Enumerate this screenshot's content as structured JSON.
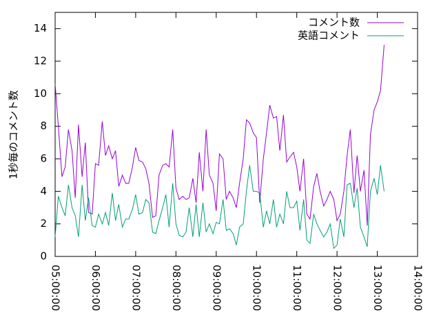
{
  "chart_data": {
    "type": "line",
    "ylabel": "1秒毎のコメント数",
    "xlim": [
      5,
      14
    ],
    "ylim": [
      0,
      15
    ],
    "xticks": [
      {
        "value": 5,
        "label": "05:00:00"
      },
      {
        "value": 6,
        "label": "06:00:00"
      },
      {
        "value": 7,
        "label": "07:00:00"
      },
      {
        "value": 8,
        "label": "08:00:00"
      },
      {
        "value": 9,
        "label": "09:00:00"
      },
      {
        "value": 10,
        "label": "10:00:00"
      },
      {
        "value": 11,
        "label": "11:00:00"
      },
      {
        "value": 12,
        "label": "12:00:00"
      },
      {
        "value": 13,
        "label": "13:00:00"
      },
      {
        "value": 14,
        "label": "14:00:00"
      }
    ],
    "yticks": [
      0,
      2,
      4,
      6,
      8,
      10,
      12,
      14
    ],
    "legend": "upper right",
    "x": [
      5,
      5.08,
      5.17,
      5.25,
      5.33,
      5.42,
      5.5,
      5.58,
      5.67,
      5.75,
      5.83,
      5.92,
      6,
      6.08,
      6.17,
      6.25,
      6.33,
      6.42,
      6.5,
      6.58,
      6.67,
      6.75,
      6.83,
      6.92,
      7,
      7.08,
      7.17,
      7.25,
      7.33,
      7.42,
      7.5,
      7.58,
      7.67,
      7.75,
      7.83,
      7.92,
      8,
      8.08,
      8.17,
      8.25,
      8.33,
      8.42,
      8.5,
      8.58,
      8.67,
      8.75,
      8.83,
      8.92,
      9,
      9.08,
      9.17,
      9.25,
      9.33,
      9.42,
      9.5,
      9.58,
      9.67,
      9.75,
      9.83,
      9.92,
      10,
      10.08,
      10.17,
      10.25,
      10.33,
      10.42,
      10.5,
      10.58,
      10.67,
      10.75,
      10.83,
      10.92,
      11,
      11.08,
      11.17,
      11.25,
      11.33,
      11.42,
      11.5,
      11.58,
      11.67,
      11.75,
      11.83,
      11.92,
      12,
      12.08,
      12.17,
      12.25,
      12.33,
      12.42,
      12.5,
      12.58,
      12.67,
      12.75,
      12.83,
      12.92,
      13,
      13.08,
      13.17
    ],
    "series": [
      {
        "name": "コメント数",
        "color": "#9400d3",
        "values": [
          10.6,
          8,
          4.9,
          5.5,
          7.8,
          6.5,
          3.6,
          8.1,
          4.9,
          7.0,
          2.7,
          2.6,
          5.7,
          5.6,
          8.3,
          6.2,
          6.8,
          6.0,
          6.5,
          4.3,
          5.0,
          4.5,
          4.5,
          5.5,
          6.7,
          5.9,
          5.8,
          5.4,
          4.5,
          2.4,
          2.5,
          5.0,
          5.6,
          5.7,
          5.5,
          7.8,
          4.2,
          3.5,
          3.7,
          3.5,
          3.6,
          4.8,
          3.3,
          6.4,
          4.0,
          7.8,
          5.0,
          4.5,
          2.8,
          6.3,
          6.0,
          3.5,
          4.0,
          3.6,
          3.0,
          4.5,
          6.0,
          8.4,
          8.2,
          7.6,
          7.3,
          3.3,
          6.0,
          7.6,
          9.3,
          8.5,
          8.6,
          6.5,
          8.7,
          5.8,
          6.1,
          6.4,
          5.5,
          4.0,
          6.0,
          2.6,
          2.3,
          4.3,
          5.1,
          4.0,
          3.1,
          3.5,
          4.0,
          3.5,
          2.2,
          2.6,
          4.0,
          6.2,
          7.8,
          3.9,
          6.2,
          4.0,
          5.3,
          1.9,
          7.5,
          9.0,
          9.5,
          10.2,
          13.0
        ]
      },
      {
        "name": "英語コメント",
        "color": "#009e73",
        "values": [
          1.2,
          3.7,
          3.0,
          2.5,
          4.4,
          3.0,
          2.5,
          1.2,
          4.4,
          2.2,
          3.6,
          1.9,
          1.8,
          2.6,
          2.0,
          2.7,
          1.9,
          3.9,
          2.2,
          3.2,
          1.8,
          2.3,
          2.3,
          2.9,
          3.8,
          2.6,
          2.7,
          3.5,
          3.3,
          1.5,
          1.4,
          2.2,
          3.0,
          3.8,
          1.8,
          4.5,
          2.0,
          1.3,
          1.2,
          1.5,
          3.0,
          1.2,
          3.2,
          1.2,
          3.3,
          1.5,
          2.0,
          1.4,
          2.1,
          2.0,
          3.5,
          1.6,
          1.7,
          1.4,
          0.7,
          1.8,
          2.0,
          4.0,
          5.6,
          4.0,
          4.0,
          3.9,
          1.8,
          2.8,
          2.0,
          3.5,
          1.8,
          2.6,
          2.0,
          4.0,
          3.0,
          3.0,
          3.4,
          1.6,
          3.5,
          1.0,
          0.8,
          2.6,
          2.0,
          1.6,
          1.2,
          1.5,
          2.0,
          0.5,
          0.7,
          2.3,
          1.2,
          4.4,
          4.5,
          3.0,
          4.2,
          1.8,
          1.2,
          0.6,
          4.0,
          4.8,
          3.8,
          5.6,
          4.0
        ]
      }
    ]
  }
}
